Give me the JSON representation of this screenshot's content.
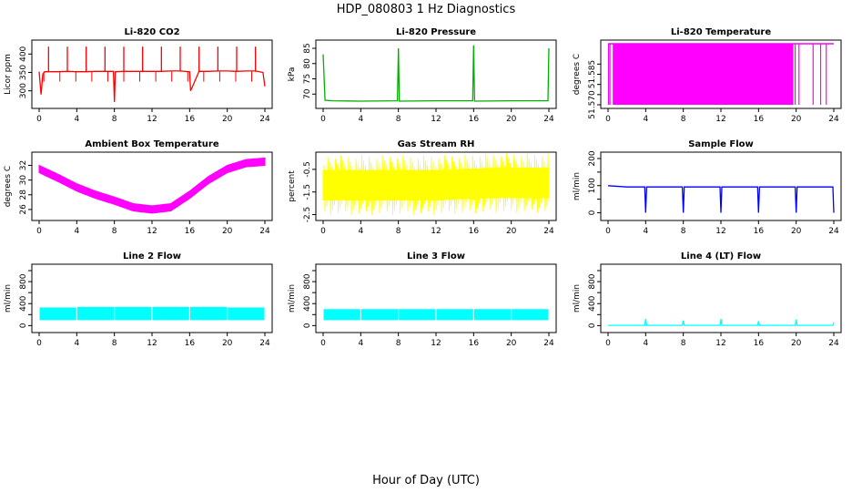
{
  "page": {
    "title": "HDP_080803  1 Hz Diagnostics",
    "xlabel": "Hour of Day (UTC)"
  },
  "chart_data": [
    {
      "id": "co2",
      "type": "line",
      "title": "Li-820 CO2",
      "ylabel": "Licor ppm",
      "color": "#ff0000",
      "xlim": [
        0,
        24
      ],
      "ylim": [
        262,
        428
      ],
      "xticks": [
        0,
        4,
        8,
        12,
        16,
        20,
        24
      ],
      "yticks": [
        300,
        350,
        400
      ],
      "ytick_labels": [
        "300",
        "350",
        "400"
      ],
      "series": [
        {
          "x": [
            0,
            0.2,
            0.4,
            0.6,
            1,
            2,
            3,
            4,
            5,
            6,
            7,
            7.9,
            8,
            8.1,
            9,
            10,
            11,
            12,
            13,
            14,
            15,
            16,
            16.1,
            17,
            18,
            19,
            20,
            21,
            22,
            23,
            23.8,
            24
          ],
          "y": [
            352,
            290,
            346,
            352,
            352,
            352,
            353,
            352,
            352,
            353,
            353,
            353,
            270,
            352,
            353,
            353,
            353,
            353,
            353,
            354,
            354,
            352,
            300,
            353,
            353,
            354,
            354,
            353,
            354,
            354,
            350,
            312
          ]
        }
      ]
    },
    {
      "id": "pressure",
      "type": "line",
      "title": "Li-820 Pressure",
      "ylabel": "kPa",
      "color": "#00b000",
      "xlim": [
        0,
        24
      ],
      "ylim": [
        66.5,
        86.5
      ],
      "xticks": [
        0,
        4,
        8,
        12,
        16,
        20,
        24
      ],
      "yticks": [
        70,
        75,
        80,
        85
      ],
      "ytick_labels": [
        "70",
        "75",
        "80",
        "85"
      ],
      "series": [
        {
          "x": [
            0,
            0.2,
            1,
            4,
            7.9,
            8,
            8.1,
            12,
            15.9,
            16,
            16.1,
            20,
            23.9,
            24
          ],
          "y": [
            83,
            68,
            67.8,
            67.7,
            67.8,
            85,
            67.7,
            67.8,
            67.8,
            86,
            67.7,
            67.8,
            67.8,
            85
          ]
        }
      ]
    },
    {
      "id": "licor_temp",
      "type": "line",
      "title": "Li-820 Temperature",
      "ylabel": "degrees C",
      "color": "#ff00ff",
      "xlim": [
        0,
        24
      ],
      "ylim": [
        51.57,
        51.6
      ],
      "xticks": [
        0,
        4,
        8,
        12,
        16,
        20,
        24
      ],
      "yticks": [
        51.57,
        51.575,
        51.58,
        51.585,
        51.59
      ],
      "ytick_labels": [
        "51.570",
        "",
        "",
        "51.585",
        ""
      ],
      "series": [
        {
          "x": [
            0,
            0.5,
            1,
            2,
            4,
            8,
            12,
            16,
            19.5,
            20,
            21,
            22,
            23,
            24
          ],
          "y": [
            51.6,
            51.57,
            51.6,
            51.57,
            51.6,
            51.57,
            51.6,
            51.57,
            51.6,
            51.59,
            51.6,
            51.575,
            51.6,
            51.6
          ]
        }
      ]
    },
    {
      "id": "box_temp",
      "type": "line",
      "title": "Ambient Box Temperature",
      "ylabel": "degrees C",
      "color": "#ff00ff",
      "xlim": [
        0,
        24
      ],
      "ylim": [
        25,
        33.3
      ],
      "xticks": [
        0,
        4,
        8,
        12,
        16,
        20,
        24
      ],
      "yticks": [
        26,
        28,
        30,
        32
      ],
      "ytick_labels": [
        "26",
        "28",
        "30",
        "32"
      ],
      "series": [
        {
          "x": [
            0,
            2,
            4,
            6,
            8,
            10,
            12,
            14,
            16,
            18,
            20,
            22,
            24
          ],
          "y": [
            31.5,
            30.3,
            29,
            28,
            27.2,
            26.3,
            26,
            26.3,
            28,
            30,
            31.5,
            32.3,
            32.5
          ]
        }
      ]
    },
    {
      "id": "rh",
      "type": "line",
      "title": "Gas Stream RH",
      "ylabel": "percent",
      "color": "#ffff00",
      "xlim": [
        0,
        24
      ],
      "ylim": [
        -2.6,
        0.1
      ],
      "xticks": [
        0,
        4,
        8,
        12,
        16,
        20,
        24
      ],
      "yticks": [
        -2.5,
        -1.5,
        -0.5
      ],
      "ytick_labels": [
        "-2.5",
        "-1.5",
        "-0.5"
      ],
      "series": [
        {
          "x": [
            0,
            6,
            12,
            18,
            24
          ],
          "y": [
            -1.2,
            -1.2,
            -1.2,
            -1.1,
            -1.1
          ]
        }
      ]
    },
    {
      "id": "sample_flow",
      "type": "line",
      "title": "Sample Flow",
      "ylabel": "ml/min",
      "color": "#0000ff",
      "xlim": [
        0,
        24
      ],
      "ylim": [
        -15,
        210
      ],
      "xticks": [
        0,
        4,
        8,
        12,
        16,
        20,
        24
      ],
      "yticks": [
        0,
        50,
        100,
        150,
        200
      ],
      "ytick_labels": [
        "0",
        "",
        "100",
        "",
        "200"
      ],
      "series": [
        {
          "x": [
            0,
            2,
            3.9,
            4,
            4.1,
            6,
            7.9,
            8,
            8.1,
            10,
            11.9,
            12,
            12.1,
            14,
            15.9,
            16,
            16.1,
            18,
            19.9,
            20,
            20.1,
            22,
            23.9,
            24
          ],
          "y": [
            100,
            95,
            95,
            0,
            95,
            95,
            95,
            0,
            95,
            95,
            95,
            0,
            95,
            95,
            95,
            0,
            95,
            95,
            95,
            0,
            95,
            95,
            95,
            0
          ]
        }
      ]
    },
    {
      "id": "line2_flow",
      "type": "area",
      "title": "Line 2 Flow",
      "ylabel": "ml/min",
      "color": "#00ffff",
      "xlim": [
        0,
        24
      ],
      "ylim": [
        -60,
        1050
      ],
      "xticks": [
        0,
        4,
        8,
        12,
        16,
        20,
        24
      ],
      "yticks": [
        0,
        200,
        400,
        600,
        800,
        1000
      ],
      "ytick_labels": [
        "0",
        "",
        "400",
        "",
        "800",
        ""
      ],
      "series": [
        {
          "x": [
            0,
            4,
            8,
            12,
            16,
            20,
            24
          ],
          "y": [
            320,
            330,
            340,
            340,
            340,
            330,
            320
          ]
        }
      ]
    },
    {
      "id": "line3_flow",
      "type": "area",
      "title": "Line 3 Flow",
      "ylabel": "ml/min",
      "color": "#00ffff",
      "xlim": [
        0,
        24
      ],
      "ylim": [
        -60,
        1050
      ],
      "xticks": [
        0,
        4,
        8,
        12,
        16,
        20,
        24
      ],
      "yticks": [
        0,
        200,
        400,
        600,
        800,
        1000
      ],
      "ytick_labels": [
        "0",
        "",
        "400",
        "",
        "800",
        ""
      ],
      "series": [
        {
          "x": [
            0,
            4,
            8,
            12,
            16,
            20,
            24
          ],
          "y": [
            300,
            300,
            300,
            300,
            300,
            300,
            290
          ]
        }
      ]
    },
    {
      "id": "line4_flow",
      "type": "line",
      "title": "Line 4 (LT) Flow",
      "ylabel": "ml/min",
      "color": "#00ffff",
      "xlim": [
        0,
        24
      ],
      "ylim": [
        -60,
        1050
      ],
      "xticks": [
        0,
        4,
        8,
        12,
        16,
        20,
        24
      ],
      "yticks": [
        0,
        200,
        400,
        600,
        800,
        1000
      ],
      "ytick_labels": [
        "0",
        "",
        "400",
        "",
        "800",
        ""
      ],
      "series": [
        {
          "x": [
            0,
            3.9,
            4,
            4.1,
            7.9,
            8,
            8.1,
            11.9,
            12,
            12.1,
            15.9,
            16,
            16.1,
            19.9,
            20,
            20.1,
            23.9,
            24
          ],
          "y": [
            5,
            5,
            120,
            5,
            5,
            90,
            5,
            5,
            120,
            5,
            5,
            80,
            5,
            5,
            110,
            5,
            5,
            60
          ]
        }
      ]
    }
  ]
}
